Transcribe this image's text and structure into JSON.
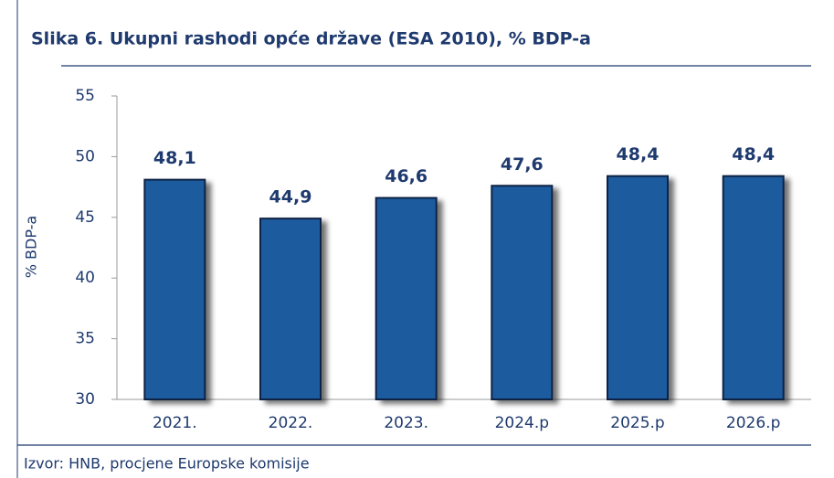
{
  "chart_data": {
    "type": "bar",
    "title": "Slika 6. Ukupni rashodi opće države (ESA 2010), % BDP-a",
    "y_label": "% BDP-a",
    "source": "Izvor: HNB, procjene Europske komisije",
    "categories": [
      "2021.",
      "2022.",
      "2023.",
      "2024.p",
      "2025.p",
      "2026.p"
    ],
    "values": [
      48.1,
      44.9,
      46.6,
      47.6,
      48.4,
      48.4
    ],
    "value_labels": [
      "48,1",
      "44,9",
      "46,6",
      "47,6",
      "48,4",
      "48,4"
    ],
    "color": "#1f5c9e",
    "ylim": [
      30,
      55
    ],
    "yticks": [
      30,
      35,
      40,
      45,
      50,
      55
    ],
    "grid": false
  }
}
